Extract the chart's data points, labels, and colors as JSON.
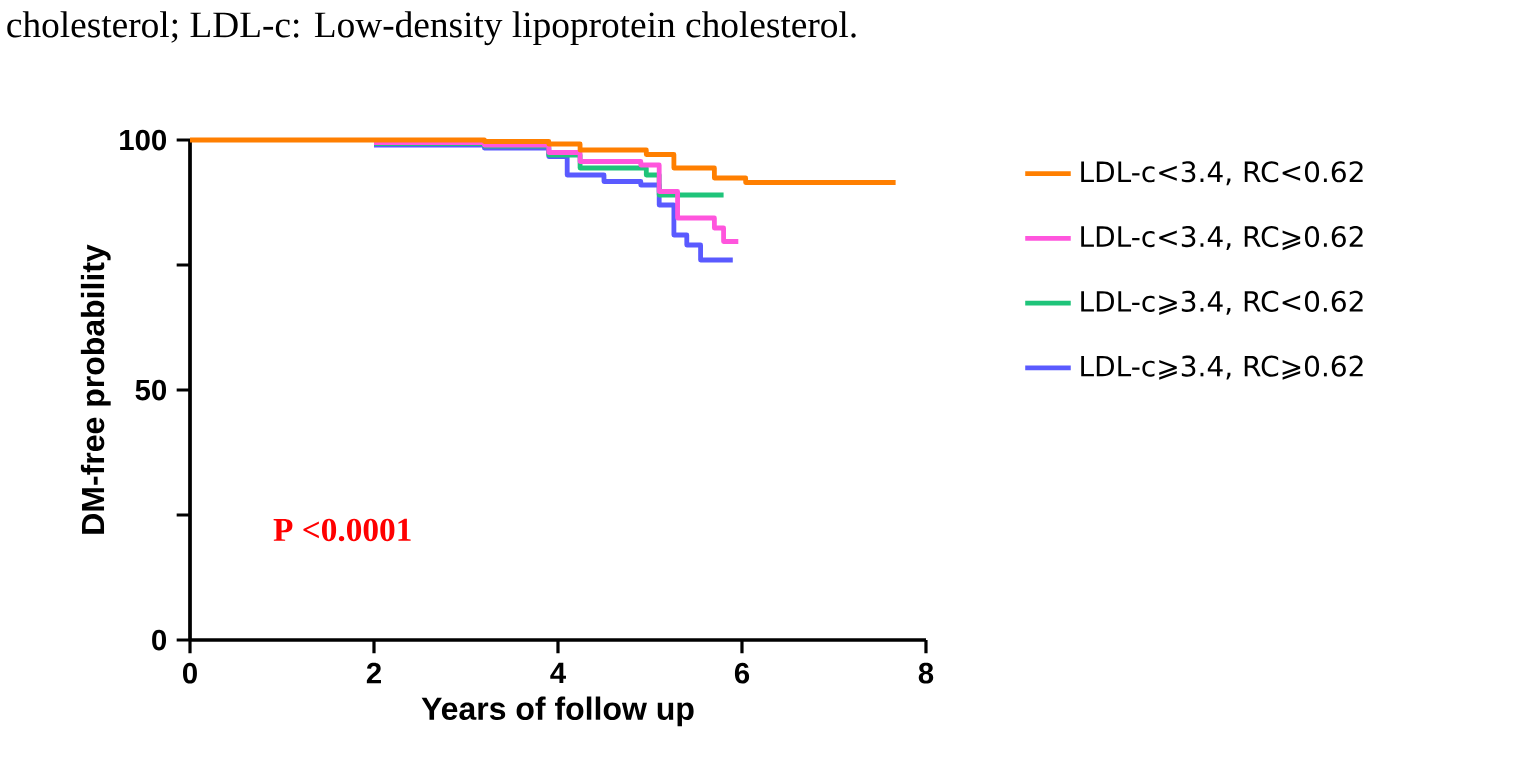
{
  "chart_data": {
    "type": "step",
    "xlabel": "Years of follow up",
    "ylabel": "DM-free probability",
    "annotations": [
      "cholesterol;          LDL-c:          Low-density          lipoprotein          cholesterol.",
      "P <0.0001"
    ],
    "xlim": [
      0,
      8
    ],
    "xticks": [
      0,
      2,
      4,
      6,
      8
    ],
    "ylim": [
      0,
      100
    ],
    "yticks": [
      0,
      {
        "value": 25,
        "label": null
      },
      50,
      {
        "value": 75,
        "label": null
      },
      100
    ],
    "legend": "right",
    "marker": "none",
    "line_style": "solid",
    "grid": false,
    "series": [
      {
        "name": "LDL-c<3.4, RC<0.62",
        "color": "#ff7f00",
        "x": [
          0,
          2,
          3.2,
          3.9,
          4.24,
          4.96,
          5.26,
          5.7,
          6.04,
          7.67
        ],
        "values": [
          100,
          100,
          99.7,
          99.2,
          98,
          97.1,
          94.4,
          92.4,
          91.5,
          91.5
        ]
      },
      {
        "name": "LDL-c<3.4, RC⩾0.62",
        "color": "#ff55dd",
        "x": [
          2,
          3.2,
          3.9,
          4.24,
          4.9,
          5.1,
          5.3,
          5.7,
          5.8,
          5.96
        ],
        "values": [
          99.5,
          99,
          97.5,
          95.7,
          95,
          89.7,
          84.4,
          82.4,
          79.7,
          79.7
        ]
      },
      {
        "name": "LDL-c⩾3.4, RC<0.62",
        "color": "#1fc47a",
        "x": [
          2,
          3.2,
          3.9,
          4.24,
          4.96,
          5.1,
          5.8
        ],
        "values": [
          99.3,
          98.8,
          97,
          94.4,
          93,
          89,
          89
        ]
      },
      {
        "name": "LDL-c⩾3.4, RC⩾0.62",
        "color": "#5a5aff",
        "x": [
          2,
          3.2,
          3.9,
          4.1,
          4.5,
          4.9,
          5.1,
          5.26,
          5.4,
          5.55,
          5.9
        ],
        "values": [
          99,
          98.4,
          96.7,
          93,
          91.7,
          91,
          87,
          81,
          79,
          76,
          76
        ]
      }
    ]
  }
}
